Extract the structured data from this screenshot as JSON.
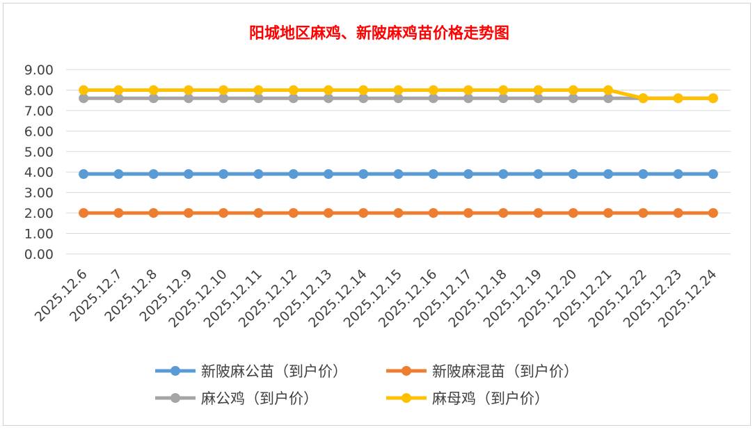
{
  "chart_data": {
    "type": "line",
    "title": "阳城地区麻鸡、新陂麻鸡苗价格走势图",
    "title_color": "#ff0000",
    "xlabel": "",
    "ylabel": "",
    "ylim": [
      0,
      9
    ],
    "y_ticks": [
      "0.00",
      "1.00",
      "2.00",
      "3.00",
      "4.00",
      "5.00",
      "6.00",
      "7.00",
      "8.00",
      "9.00"
    ],
    "grid": true,
    "legend_position": "bottom",
    "categories": [
      "2025.12.6",
      "2025.12.7",
      "2025.12.8",
      "2025.12.9",
      "2025.12.10",
      "2025.12.11",
      "2025.12.12",
      "2025.12.13",
      "2025.12.14",
      "2025.12.15",
      "2025.12.16",
      "2025.12.17",
      "2025.12.18",
      "2025.12.19",
      "2025.12.20",
      "2025.12.21",
      "2025.12.22",
      "2025.12.23",
      "2025.12.24"
    ],
    "series": [
      {
        "name": "新陂麻公苗（到户价）",
        "color": "#5b9bd5",
        "values": [
          3.9,
          3.9,
          3.9,
          3.9,
          3.9,
          3.9,
          3.9,
          3.9,
          3.9,
          3.9,
          3.9,
          3.9,
          3.9,
          3.9,
          3.9,
          3.9,
          3.9,
          3.9,
          3.9
        ]
      },
      {
        "name": "新陂麻混苗（到户价）",
        "color": "#ed7d31",
        "values": [
          2.0,
          2.0,
          2.0,
          2.0,
          2.0,
          2.0,
          2.0,
          2.0,
          2.0,
          2.0,
          2.0,
          2.0,
          2.0,
          2.0,
          2.0,
          2.0,
          2.0,
          2.0,
          2.0
        ]
      },
      {
        "name": "麻公鸡（到户价）",
        "color": "#a5a5a5",
        "values": [
          7.6,
          7.6,
          7.6,
          7.6,
          7.6,
          7.6,
          7.6,
          7.6,
          7.6,
          7.6,
          7.6,
          7.6,
          7.6,
          7.6,
          7.6,
          7.6,
          7.6,
          7.6,
          7.6
        ]
      },
      {
        "name": "麻母鸡（到户价）",
        "color": "#ffc000",
        "values": [
          8.0,
          8.0,
          8.0,
          8.0,
          8.0,
          8.0,
          8.0,
          8.0,
          8.0,
          8.0,
          8.0,
          8.0,
          8.0,
          8.0,
          8.0,
          8.0,
          7.6,
          7.6,
          7.6
        ]
      }
    ]
  }
}
